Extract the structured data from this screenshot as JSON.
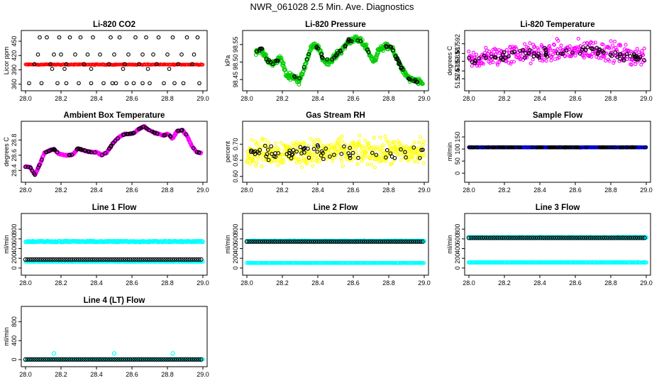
{
  "page_title": "NWR_061028  2.5 Min. Ave. Diagnostics",
  "colors": {
    "black": "#000000",
    "red": "#ff0000",
    "green": "#00cc00",
    "magenta": "#ff00ff",
    "yellow": "#ffff00",
    "cyan": "#00ffff",
    "blue": "#0000cc"
  },
  "chart_data": [
    {
      "type": "scatter",
      "title": "Li-820 CO2",
      "ylabel": "Licor ppm",
      "xlim": [
        28.0,
        29.0
      ],
      "ylim": [
        355,
        465
      ],
      "xticks": [
        28.0,
        28.2,
        28.4,
        28.6,
        28.8,
        29.0
      ],
      "xtick_labels": [
        "28.0",
        "28.2",
        "28.4",
        "28.6",
        "28.8",
        "29.0"
      ],
      "yticks": [
        360,
        390,
        420,
        450
      ],
      "ytick_labels": [
        "360",
        "390",
        "420",
        "450"
      ],
      "series": [
        {
          "name": "red",
          "color": "#ff0000",
          "dense": true,
          "x_range": [
            28.0,
            29.0
          ],
          "base": [
            401,
            401,
            401
          ],
          "noise": 1.2,
          "n": 200,
          "size": 2
        },
        {
          "name": "black",
          "color": "#000000",
          "clusters": [
            {
              "y": 458,
              "x": [
                28.08,
                28.12,
                28.19,
                28.25,
                28.31,
                28.38,
                28.48,
                28.53,
                28.62,
                28.68,
                28.75,
                28.83,
                28.91,
                28.97
              ]
            },
            {
              "y": 422,
              "x": [
                28.07,
                28.16,
                28.2,
                28.28,
                28.35,
                28.42,
                28.5,
                28.58,
                28.66,
                28.72,
                28.8,
                28.88,
                28.95
              ]
            },
            {
              "y": 402,
              "x": [
                28.05,
                28.14,
                28.23,
                28.33,
                28.47,
                28.56,
                28.64,
                28.74,
                28.86,
                28.94
              ]
            },
            {
              "y": 392,
              "x": [
                28.15,
                28.22,
                28.37,
                28.55,
                28.69,
                28.81
              ]
            },
            {
              "y": 362,
              "x": [
                28.02,
                28.09,
                28.18,
                28.23,
                28.3,
                28.37,
                28.44,
                28.49,
                28.51,
                28.57,
                28.61,
                28.66,
                28.7,
                28.78,
                28.84,
                28.89,
                28.98
              ]
            }
          ],
          "size": 2.3
        }
      ]
    },
    {
      "type": "scatter",
      "title": "Li-820 Pressure",
      "ylabel": "kPa",
      "xlim": [
        28.0,
        29.0
      ],
      "ylim": [
        98.43,
        98.58
      ],
      "xticks": [
        28.0,
        28.2,
        28.4,
        28.6,
        28.8,
        29.0
      ],
      "xtick_labels": [
        "28.0",
        "28.2",
        "28.4",
        "28.6",
        "28.8",
        "29.0"
      ],
      "yticks": [
        98.45,
        98.5,
        98.55
      ],
      "ytick_labels": [
        "98.45",
        "98.50",
        "98.55"
      ],
      "series": [
        {
          "name": "green",
          "color": "#00cc00",
          "dense": true,
          "x_range": [
            28.05,
            28.99
          ],
          "base": [
            98.53,
            98.535,
            98.5,
            98.495,
            98.515,
            98.46,
            98.46,
            98.445,
            98.49,
            98.545,
            98.545,
            98.505,
            98.5,
            98.52,
            98.535,
            98.56,
            98.565,
            98.56,
            98.54,
            98.5,
            98.535,
            98.545,
            98.54,
            98.505,
            98.47,
            98.45,
            98.445,
            98.44
          ],
          "noise": 0.012,
          "n": 420,
          "size": 2.4
        },
        {
          "name": "black",
          "color": "#000000",
          "sparse_on": 0,
          "n": 70,
          "noise": 0.008,
          "size": 2.3
        }
      ]
    },
    {
      "type": "scatter",
      "title": "Li-820 Temperature",
      "ylabel": "degrees C",
      "xlim": [
        28.0,
        29.0
      ],
      "ylim": [
        51.57,
        51.597
      ],
      "xticks": [
        28.0,
        28.2,
        28.4,
        28.6,
        28.8,
        29.0
      ],
      "xtick_labels": [
        "28.0",
        "28.2",
        "28.4",
        "28.6",
        "28.8",
        "29.0"
      ],
      "yticks": [
        51.574,
        51.578,
        51.583,
        51.587,
        51.592
      ],
      "ytick_labels": [
        "51.574",
        "51.578",
        "51.583",
        "51.587",
        "51.592"
      ],
      "series": [
        {
          "name": "magenta",
          "color": "#ff00ff",
          "dense": true,
          "x_range": [
            28.0,
            28.99
          ],
          "base": [
            51.583,
            51.585,
            51.586,
            51.587,
            51.587,
            51.588,
            51.588,
            51.589,
            51.588,
            51.586,
            51.585
          ],
          "noise": 0.0075,
          "n": 360,
          "size": 2
        },
        {
          "name": "black",
          "color": "#000000",
          "sparse_on": 0,
          "n": 80,
          "noise": 0.004,
          "size": 2.3
        }
      ]
    },
    {
      "type": "scatter",
      "title": "Ambient Box Temperature",
      "ylabel": "degrees C",
      "xlim": [
        28.0,
        29.0
      ],
      "ylim": [
        28.3,
        29.0
      ],
      "xticks": [
        28.0,
        28.2,
        28.4,
        28.6,
        28.8,
        29.0
      ],
      "xtick_labels": [
        "28.0",
        "28.2",
        "28.4",
        "28.6",
        "28.8",
        "29.0"
      ],
      "yticks": [
        28.4,
        28.6,
        28.8
      ],
      "ytick_labels": [
        "28.4",
        "28.6",
        "28.8"
      ],
      "series": [
        {
          "name": "magenta",
          "color": "#ff00ff",
          "dense": true,
          "x_range": [
            28.0,
            28.99
          ],
          "base": [
            28.45,
            28.44,
            28.34,
            28.48,
            28.63,
            28.66,
            28.68,
            28.62,
            28.6,
            28.6,
            28.61,
            28.69,
            28.67,
            28.65,
            28.64,
            28.64,
            28.6,
            28.63,
            28.72,
            28.8,
            28.85,
            28.88,
            28.88,
            28.9,
            28.95,
            28.98,
            28.93,
            28.9,
            28.88,
            28.86,
            28.88,
            28.82,
            28.92,
            28.93,
            28.86,
            28.73,
            28.64,
            28.63
          ],
          "noise": 0.012,
          "n": 420,
          "size": 2.4
        },
        {
          "name": "black",
          "color": "#000000",
          "sparse_on": 0,
          "n": 90,
          "noise": 0.006,
          "size": 2.3
        }
      ]
    },
    {
      "type": "scatter",
      "title": "Gas Stream RH",
      "ylabel": "percent",
      "xlim": [
        28.0,
        29.0
      ],
      "ylim": [
        0.595,
        0.76
      ],
      "xticks": [
        28.0,
        28.2,
        28.4,
        28.6,
        28.8,
        29.0
      ],
      "xtick_labels": [
        "28.0",
        "28.2",
        "28.4",
        "28.6",
        "28.8",
        "29.0"
      ],
      "yticks": [
        0.6,
        0.65,
        0.7
      ],
      "ytick_labels": [
        "0.60",
        "0.65",
        "0.70"
      ],
      "series": [
        {
          "name": "yellow",
          "color": "#ffff00",
          "dense": true,
          "x_range": [
            28.0,
            29.0
          ],
          "base": [
            0.675,
            0.675
          ],
          "noise": 0.06,
          "n": 430,
          "size": 2
        },
        {
          "name": "black",
          "color": "#000000",
          "sparse_on": 0,
          "n": 70,
          "noise": 0.03,
          "size": 2.3
        }
      ]
    },
    {
      "type": "scatter",
      "title": "Sample Flow",
      "ylabel": "ml/min",
      "xlim": [
        28.0,
        29.0
      ],
      "ylim": [
        -20,
        200
      ],
      "xticks": [
        28.0,
        28.2,
        28.4,
        28.6,
        28.8,
        29.0
      ],
      "xtick_labels": [
        "28.0",
        "28.2",
        "28.4",
        "28.6",
        "28.8",
        "29.0"
      ],
      "yticks": [
        0,
        50,
        100,
        150
      ],
      "ytick_labels": [
        "0",
        "50",
        "100",
        "150"
      ],
      "series": [
        {
          "name": "blue",
          "color": "#0000cc",
          "dense": true,
          "x_range": [
            28.0,
            29.0
          ],
          "base": [
            107,
            107
          ],
          "noise": 1.0,
          "n": 260,
          "size": 2.2
        },
        {
          "name": "black",
          "color": "#000000",
          "sparse_on": 0,
          "n": 110,
          "noise": 0.6,
          "size": 2.2
        }
      ]
    },
    {
      "type": "scatter",
      "title": "Line 1 Flow",
      "ylabel": "ml/min",
      "xlim": [
        28.0,
        29.0
      ],
      "ylim": [
        -60,
        1050
      ],
      "xticks": [
        28.0,
        28.2,
        28.4,
        28.6,
        28.8,
        29.0
      ],
      "xtick_labels": [
        "28.0",
        "28.2",
        "28.4",
        "28.6",
        "28.8",
        "29.0"
      ],
      "yticks": [
        0,
        200,
        400,
        600,
        800
      ],
      "ytick_labels": [
        "0",
        "200",
        "400",
        "600",
        "800"
      ],
      "series": [
        {
          "name": "cyan",
          "color": "#00ffff",
          "dense": true,
          "x_range": [
            28.0,
            29.0
          ],
          "base": [
            545,
            545
          ],
          "noise": 14,
          "n": 230,
          "size": 2.6
        },
        {
          "name": "cyan-low",
          "color": "#00ffff",
          "dense": true,
          "x_range": [
            28.0,
            29.0
          ],
          "base": [
            130,
            130
          ],
          "noise": 2,
          "n": 150,
          "size": 2.2
        },
        {
          "name": "black",
          "color": "#000000",
          "regular": true,
          "x_range": [
            28.0,
            28.99
          ],
          "y": 175,
          "n": 80,
          "size": 2.6
        }
      ]
    },
    {
      "type": "scatter",
      "title": "Line 2 Flow",
      "ylabel": "ml/min",
      "xlim": [
        28.0,
        29.0
      ],
      "ylim": [
        -60,
        1050
      ],
      "xticks": [
        28.0,
        28.2,
        28.4,
        28.6,
        28.8,
        29.0
      ],
      "xtick_labels": [
        "28.0",
        "28.2",
        "28.4",
        "28.6",
        "28.8",
        "29.0"
      ],
      "yticks": [
        0,
        200,
        400,
        600,
        800
      ],
      "ytick_labels": [
        "0",
        "200",
        "400",
        "600",
        "800"
      ],
      "series": [
        {
          "name": "cyan",
          "color": "#00ffff",
          "dense": true,
          "x_range": [
            28.0,
            29.0
          ],
          "base": [
            555,
            555
          ],
          "noise": 10,
          "n": 200,
          "size": 2.6
        },
        {
          "name": "cyan-low",
          "color": "#00ffff",
          "dense": true,
          "x_range": [
            28.0,
            29.0
          ],
          "base": [
            105,
            105
          ],
          "noise": 3,
          "n": 200,
          "size": 2.2
        },
        {
          "name": "black",
          "color": "#000000",
          "regular": true,
          "x_range": [
            28.0,
            28.99
          ],
          "y": 545,
          "n": 80,
          "size": 2.6
        }
      ]
    },
    {
      "type": "scatter",
      "title": "Line 3 Flow",
      "ylabel": "ml/min",
      "xlim": [
        28.0,
        29.0
      ],
      "ylim": [
        -60,
        1050
      ],
      "xticks": [
        28.0,
        28.2,
        28.4,
        28.6,
        28.8,
        29.0
      ],
      "xtick_labels": [
        "28.0",
        "28.2",
        "28.4",
        "28.6",
        "28.8",
        "29.0"
      ],
      "yticks": [
        0,
        200,
        400,
        600,
        800
      ],
      "ytick_labels": [
        "0",
        "200",
        "400",
        "600",
        "800"
      ],
      "series": [
        {
          "name": "cyan",
          "color": "#00ffff",
          "dense": true,
          "x_range": [
            28.0,
            29.0
          ],
          "base": [
            630,
            630
          ],
          "noise": 10,
          "n": 200,
          "size": 2.6
        },
        {
          "name": "cyan-low",
          "color": "#00ffff",
          "dense": true,
          "x_range": [
            28.0,
            29.0
          ],
          "base": [
            115,
            115
          ],
          "noise": 3,
          "n": 200,
          "size": 2.4
        },
        {
          "name": "black",
          "color": "#000000",
          "regular": true,
          "x_range": [
            28.0,
            28.99
          ],
          "y": 620,
          "n": 80,
          "size": 2.6
        }
      ]
    },
    {
      "type": "scatter",
      "title": "Line 4 (LT) Flow",
      "ylabel": "ml/min",
      "xlim": [
        28.0,
        29.0
      ],
      "ylim": [
        -60,
        1050
      ],
      "xticks": [
        28.0,
        28.2,
        28.4,
        28.6,
        28.8,
        29.0
      ],
      "xtick_labels": [
        "28.0",
        "28.2",
        "28.4",
        "28.6",
        "28.8",
        "29.0"
      ],
      "yticks": [
        0,
        400,
        800
      ],
      "ytick_labels": [
        "0",
        "400",
        "800"
      ],
      "series": [
        {
          "name": "cyan",
          "color": "#00ffff",
          "dense": true,
          "x_range": [
            28.0,
            29.0
          ],
          "base": [
            5,
            5
          ],
          "noise": 2,
          "n": 160,
          "size": 2.2
        },
        {
          "name": "cyan-spikes",
          "color": "#00ffff",
          "points": [
            [
              28.16,
              130
            ],
            [
              28.5,
              130
            ],
            [
              28.83,
              130
            ],
            [
              28.0,
              0
            ]
          ],
          "size": 2.6
        },
        {
          "name": "black",
          "color": "#000000",
          "regular": true,
          "x_range": [
            28.0,
            28.99
          ],
          "y": 3,
          "n": 80,
          "size": 2.6
        }
      ]
    }
  ]
}
